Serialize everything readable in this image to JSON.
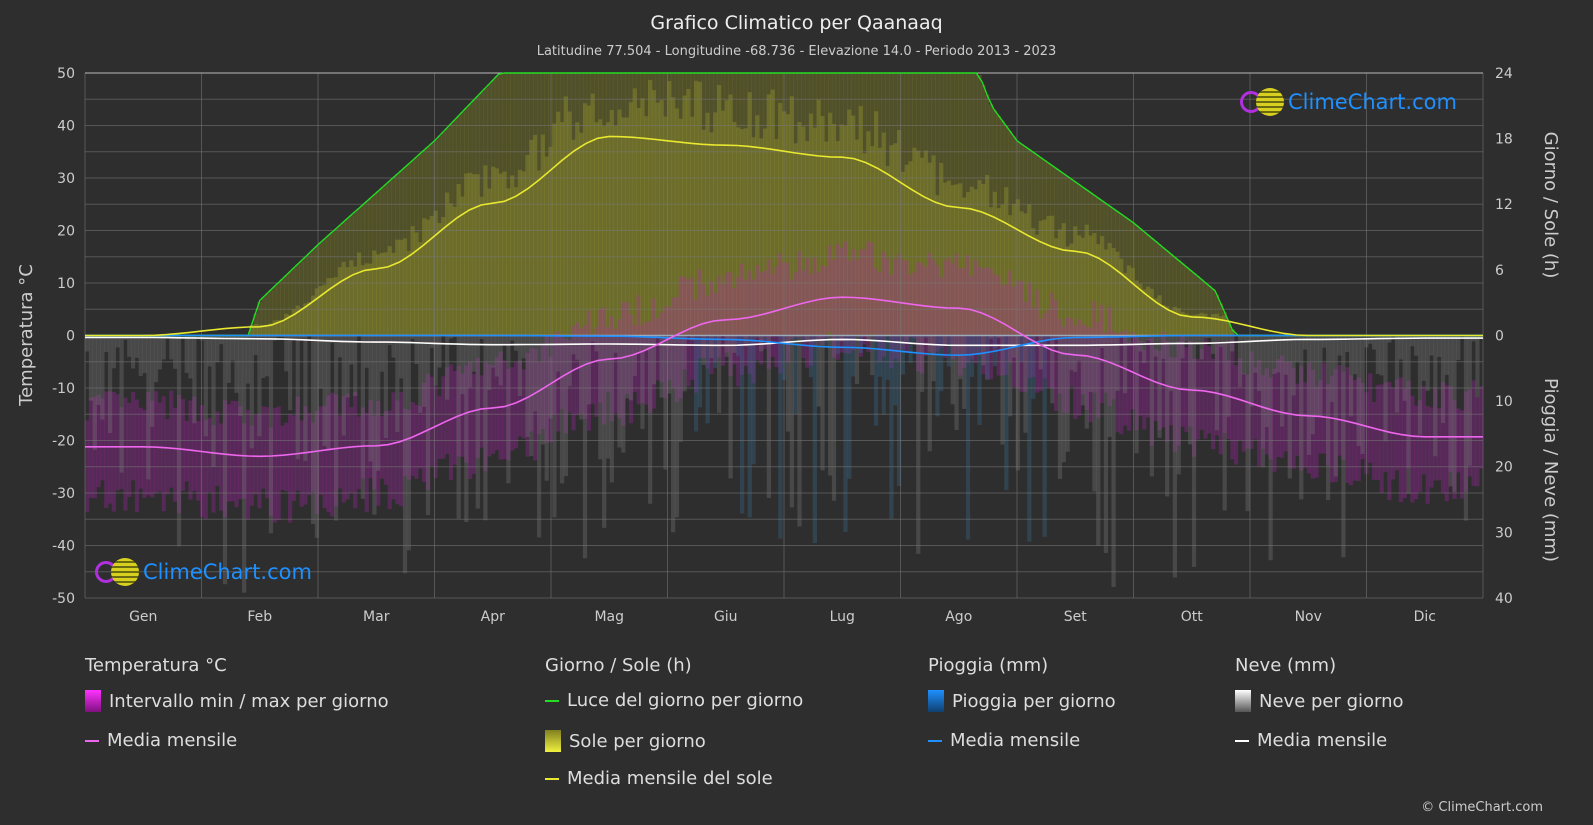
{
  "header": {
    "title": "Grafico Climatico per Qaanaaq",
    "subtitle": "Latitudine 77.504 - Longitudine -68.736 - Elevazione 14.0 - Periodo 2013 - 2023"
  },
  "chart_data": {
    "type": "line",
    "months": [
      "Gen",
      "Feb",
      "Mar",
      "Apr",
      "Mag",
      "Giu",
      "Lug",
      "Ago",
      "Set",
      "Ott",
      "Nov",
      "Dic"
    ],
    "left_axis": {
      "label": "Temperatura °C",
      "range": [
        -50,
        50
      ],
      "ticks": [
        "50",
        "40",
        "30",
        "20",
        "10",
        "0",
        "-10",
        "-20",
        "-30",
        "-40",
        "-50"
      ]
    },
    "right_axis_top": {
      "label": "Giorno / Sole (h)",
      "range": [
        0,
        24
      ],
      "ticks": [
        "24",
        "18",
        "12",
        "6",
        "0"
      ]
    },
    "right_axis_bottom": {
      "label": "Pioggia / Neve (mm)",
      "range": [
        0,
        40
      ],
      "ticks": [
        "0",
        "10",
        "20",
        "30",
        "40"
      ]
    },
    "series": [
      {
        "name": "Media mensile temperatura",
        "color": "#ee66ee",
        "values": [
          -21.2,
          -23,
          -21,
          -13.8,
          -4.5,
          3,
          7.3,
          5.2,
          -3.7,
          -10.4,
          -15.3,
          -19.3
        ]
      },
      {
        "name": "Media mensile del sole",
        "color": "#e8e830",
        "values": [
          0,
          0.8,
          6.1,
          12.1,
          18.2,
          17.4,
          16.3,
          11.7,
          7.7,
          1.7,
          0,
          0
        ]
      },
      {
        "name": "Pioggia media mensile",
        "color": "#1e90ff",
        "values": [
          0,
          0,
          0,
          0,
          0.1,
          0.6,
          1.8,
          3,
          0.3,
          0,
          0,
          0
        ]
      },
      {
        "name": "Neve media mensile",
        "color": "#ffffff",
        "values": [
          0.3,
          0.5,
          1,
          1.4,
          1.3,
          1.5,
          0.6,
          1.5,
          1.5,
          1.2,
          0.6,
          0.4
        ]
      }
    ],
    "daylight_points": [
      [
        0,
        0
      ],
      [
        1.4,
        0
      ],
      [
        1.5,
        3.2
      ],
      [
        2.0,
        8.3
      ],
      [
        3.0,
        17.8
      ],
      [
        3.56,
        24
      ],
      [
        7.67,
        24
      ],
      [
        7.78,
        21
      ],
      [
        8.0,
        17.8
      ],
      [
        9.0,
        10.3
      ],
      [
        9.7,
        4.1
      ],
      [
        9.87,
        0
      ],
      [
        12,
        0
      ]
    ]
  },
  "legend": {
    "temp": {
      "title": "Temperatura °C",
      "items": [
        "Intervallo min / max per giorno",
        "Media mensile"
      ]
    },
    "sun": {
      "title": "Giorno / Sole (h)",
      "items": [
        "Luce del giorno per giorno",
        "Sole per giorno",
        "Media mensile del sole"
      ]
    },
    "rain": {
      "title": "Pioggia (mm)",
      "items": [
        "Pioggia per giorno",
        "Media mensile"
      ]
    },
    "snow": {
      "title": "Neve (mm)",
      "items": [
        "Neve per giorno",
        "Media mensile"
      ]
    }
  },
  "logo": "ClimeChart.com",
  "copyright": "© ClimeChart.com"
}
